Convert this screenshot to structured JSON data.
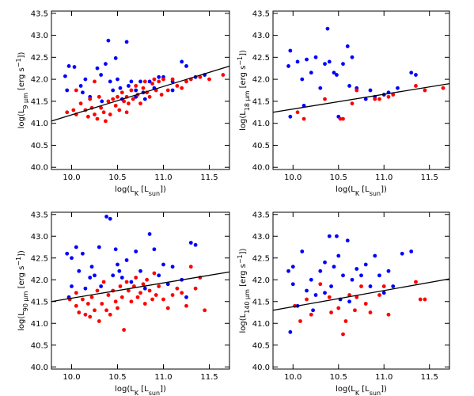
{
  "chart_data": [
    {
      "type": "scatter",
      "x_label": [
        {
          "text": "log(L"
        },
        {
          "text": "K",
          "shift": "sub"
        },
        {
          "text": " [L"
        },
        {
          "text": "sun",
          "shift": "sub"
        },
        {
          "text": "])"
        }
      ],
      "y_label": [
        {
          "text": "log(L"
        },
        {
          "text": "9 µm",
          "shift": "sub"
        },
        {
          "text": " [erg s"
        },
        {
          "text": "−1",
          "shift": "super"
        },
        {
          "text": "])"
        }
      ],
      "xlim": [
        9.78,
        11.72
      ],
      "ylim": [
        39.95,
        43.55
      ],
      "xticks": [
        {
          "value": 10,
          "label": "10.0"
        },
        10.5,
        {
          "value": 11,
          "label": "11.0"
        },
        11.5
      ],
      "yticks": [
        {
          "value": 40,
          "label": "40.0"
        },
        40.5,
        {
          "value": 41,
          "label": "41.0"
        },
        41.5,
        {
          "value": 42,
          "label": "42.0"
        },
        42.5,
        {
          "value": 43,
          "label": "43.0"
        },
        43.5
      ],
      "series": [
        {
          "color": "#0000ff",
          "x": [
            9.93,
            9.97,
            10.03,
            9.95,
            10.1,
            10.12,
            10.15,
            10.2,
            10.28,
            10.32,
            10.33,
            10.37,
            10.4,
            10.42,
            10.45,
            10.48,
            10.5,
            10.53,
            10.55,
            10.6,
            10.62,
            10.65,
            10.7,
            10.75,
            10.78,
            10.8,
            10.85,
            10.9,
            10.95,
            11.0,
            11.1,
            11.2,
            11.25,
            11.35,
            11.45,
            11.1,
            10.7
          ],
          "y": [
            42.07,
            42.3,
            42.28,
            41.75,
            41.85,
            41.7,
            42.0,
            41.6,
            42.25,
            42.1,
            41.5,
            42.35,
            42.88,
            41.95,
            41.75,
            42.48,
            42.0,
            41.8,
            41.55,
            42.85,
            41.85,
            41.95,
            41.6,
            41.95,
            41.7,
            41.55,
            41.95,
            41.8,
            42.05,
            42.05,
            41.95,
            42.4,
            42.3,
            42.05,
            42.1,
            41.75,
            41.75
          ]
        },
        {
          "color": "#ff0000",
          "x": [
            9.95,
            10.02,
            10.05,
            10.1,
            10.15,
            10.18,
            10.2,
            10.22,
            10.25,
            10.28,
            10.3,
            10.32,
            10.35,
            10.37,
            10.4,
            10.42,
            10.45,
            10.48,
            10.5,
            10.52,
            10.55,
            10.57,
            10.6,
            10.62,
            10.65,
            10.67,
            10.7,
            10.72,
            10.75,
            10.78,
            10.8,
            10.82,
            10.85,
            10.88,
            10.9,
            10.92,
            10.95,
            10.98,
            11.0,
            11.05,
            11.1,
            11.15,
            11.2,
            11.25,
            11.3,
            11.4,
            11.5,
            11.65,
            10.25,
            10.05,
            10.6
          ],
          "y": [
            41.25,
            41.3,
            41.2,
            41.45,
            41.3,
            41.15,
            41.55,
            41.35,
            41.2,
            41.1,
            41.6,
            41.35,
            41.25,
            41.05,
            41.5,
            41.2,
            41.55,
            41.4,
            41.6,
            41.3,
            41.7,
            41.5,
            41.6,
            41.45,
            41.75,
            41.55,
            41.85,
            41.65,
            41.45,
            41.8,
            41.95,
            41.7,
            41.6,
            41.9,
            42.0,
            41.75,
            41.95,
            41.65,
            42.0,
            41.75,
            42.0,
            41.85,
            41.8,
            41.95,
            42.0,
            42.05,
            42.0,
            42.1,
            41.95,
            41.75,
            41.25
          ]
        }
      ],
      "fit": {
        "color": "#000000",
        "x": [
          9.78,
          11.72
        ],
        "y": [
          41.05,
          42.3
        ]
      }
    },
    {
      "type": "scatter",
      "x_label": [
        {
          "text": "log(L"
        },
        {
          "text": "K",
          "shift": "sub"
        },
        {
          "text": " [L"
        },
        {
          "text": "sun",
          "shift": "sub"
        },
        {
          "text": "])"
        }
      ],
      "y_label": [
        {
          "text": "log(L"
        },
        {
          "text": "18 µm",
          "shift": "sub"
        },
        {
          "text": " [erg s"
        },
        {
          "text": "−1",
          "shift": "super"
        },
        {
          "text": "])"
        }
      ],
      "xlim": [
        9.78,
        11.72
      ],
      "ylim": [
        39.95,
        43.55
      ],
      "xticks": [
        {
          "value": 10,
          "label": "10.0"
        },
        10.5,
        {
          "value": 11,
          "label": "11.0"
        },
        11.5
      ],
      "yticks": [
        {
          "value": 40,
          "label": "40.0"
        },
        40.5,
        {
          "value": 41,
          "label": "41.0"
        },
        41.5,
        {
          "value": 42,
          "label": "42.0"
        },
        42.5,
        {
          "value": 43,
          "label": "43.0"
        },
        43.5
      ],
      "series": [
        {
          "color": "#0000ff",
          "x": [
            9.95,
            9.97,
            9.97,
            10.05,
            10.1,
            10.12,
            10.15,
            10.2,
            10.25,
            10.3,
            10.35,
            10.38,
            10.4,
            10.45,
            10.48,
            10.5,
            10.55,
            10.6,
            10.62,
            10.65,
            10.7,
            10.8,
            10.85,
            10.9,
            11.0,
            11.05,
            11.15,
            11.3,
            11.35
          ],
          "y": [
            42.3,
            42.65,
            41.15,
            42.4,
            42.0,
            41.4,
            42.45,
            42.15,
            42.5,
            41.8,
            42.35,
            43.15,
            42.4,
            42.15,
            42.1,
            41.15,
            42.35,
            42.75,
            41.85,
            42.5,
            41.8,
            41.55,
            41.75,
            41.6,
            41.65,
            41.7,
            41.8,
            42.15,
            42.1
          ]
        },
        {
          "color": "#ff0000",
          "x": [
            10.05,
            10.12,
            10.35,
            10.52,
            10.55,
            10.65,
            10.7,
            10.9,
            10.95,
            11.05,
            11.1,
            11.35,
            11.45,
            11.65
          ],
          "y": [
            41.25,
            41.1,
            41.55,
            41.1,
            41.1,
            41.45,
            41.75,
            41.55,
            41.55,
            41.6,
            41.65,
            41.85,
            41.75,
            41.8
          ]
        }
      ],
      "fit": {
        "color": "#000000",
        "x": [
          9.78,
          11.72
        ],
        "y": [
          41.25,
          41.9
        ]
      }
    },
    {
      "type": "scatter",
      "x_label": [
        {
          "text": "log(L"
        },
        {
          "text": "K",
          "shift": "sub"
        },
        {
          "text": " [L"
        },
        {
          "text": "sun",
          "shift": "sub"
        },
        {
          "text": "])"
        }
      ],
      "y_label": [
        {
          "text": "log(L"
        },
        {
          "text": "90 µm",
          "shift": "sub"
        },
        {
          "text": " [erg s"
        },
        {
          "text": "−1",
          "shift": "super"
        },
        {
          "text": "])"
        }
      ],
      "xlim": [
        9.78,
        11.72
      ],
      "ylim": [
        39.95,
        43.55
      ],
      "xticks": [
        {
          "value": 10,
          "label": "10.0"
        },
        10.5,
        {
          "value": 11,
          "label": "11.0"
        },
        11.5
      ],
      "yticks": [
        {
          "value": 40,
          "label": "40.0"
        },
        40.5,
        {
          "value": 41,
          "label": "41.0"
        },
        41.5,
        {
          "value": 42,
          "label": "42.0"
        },
        42.5,
        {
          "value": 43,
          "label": "43.0"
        },
        43.5
      ],
      "series": [
        {
          "color": "#0000ff",
          "x": [
            9.95,
            10.0,
            10.05,
            9.97,
            10.0,
            10.08,
            10.12,
            10.15,
            10.2,
            10.22,
            10.25,
            10.3,
            10.32,
            10.38,
            10.42,
            10.45,
            10.48,
            10.5,
            10.52,
            10.55,
            10.6,
            10.65,
            10.7,
            10.75,
            10.8,
            10.85,
            10.9,
            10.95,
            11.0,
            11.05,
            11.1,
            11.2,
            11.3,
            11.35,
            11.25
          ],
          "y": [
            42.6,
            42.5,
            42.75,
            41.6,
            41.85,
            42.2,
            42.6,
            41.8,
            42.05,
            42.3,
            42.1,
            42.75,
            41.85,
            43.45,
            43.4,
            42.1,
            42.7,
            42.35,
            42.2,
            42.05,
            42.45,
            41.95,
            42.65,
            42.2,
            41.8,
            43.05,
            42.7,
            42.1,
            42.35,
            41.9,
            42.3,
            42.0,
            42.85,
            42.8,
            41.6
          ]
        },
        {
          "color": "#ff0000",
          "x": [
            9.98,
            10.05,
            10.05,
            10.08,
            10.12,
            10.15,
            10.18,
            10.2,
            10.22,
            10.25,
            10.28,
            10.3,
            10.33,
            10.35,
            10.38,
            10.4,
            10.42,
            10.45,
            10.48,
            10.5,
            10.53,
            10.55,
            10.57,
            10.6,
            10.62,
            10.65,
            10.68,
            10.7,
            10.72,
            10.75,
            10.78,
            10.8,
            10.82,
            10.85,
            10.88,
            10.9,
            10.92,
            10.95,
            11.0,
            11.05,
            11.1,
            11.15,
            11.2,
            11.3,
            11.35,
            11.4,
            11.45,
            11.25
          ],
          "y": [
            41.55,
            41.7,
            41.4,
            41.25,
            41.55,
            41.2,
            41.45,
            41.15,
            41.6,
            41.3,
            41.75,
            41.05,
            41.45,
            41.95,
            41.3,
            41.65,
            41.2,
            41.75,
            41.5,
            41.35,
            41.85,
            41.6,
            40.85,
            41.95,
            41.75,
            41.5,
            41.85,
            42.05,
            41.6,
            41.7,
            41.9,
            41.45,
            42.0,
            41.75,
            41.55,
            42.15,
            41.65,
            41.85,
            41.55,
            41.35,
            41.65,
            41.8,
            41.7,
            42.3,
            41.8,
            42.05,
            41.3,
            41.4
          ]
        }
      ],
      "fit": {
        "color": "#000000",
        "x": [
          9.78,
          11.72
        ],
        "y": [
          41.5,
          42.18
        ]
      }
    },
    {
      "type": "scatter",
      "x_label": [
        {
          "text": "log(L"
        },
        {
          "text": "K",
          "shift": "sub"
        },
        {
          "text": " [L"
        },
        {
          "text": "sun",
          "shift": "sub"
        },
        {
          "text": "])"
        }
      ],
      "y_label": [
        {
          "text": "log(L"
        },
        {
          "text": "140 µm",
          "shift": "sub"
        },
        {
          "text": " [erg s"
        },
        {
          "text": "−1",
          "shift": "super"
        },
        {
          "text": "])"
        }
      ],
      "xlim": [
        9.78,
        11.72
      ],
      "ylim": [
        39.95,
        43.55
      ],
      "xticks": [
        {
          "value": 10,
          "label": "10.0"
        },
        10.5,
        {
          "value": 11,
          "label": "11.0"
        },
        11.5
      ],
      "yticks": [
        {
          "value": 40,
          "label": "40.0"
        },
        40.5,
        {
          "value": 41,
          "label": "41.0"
        },
        41.5,
        {
          "value": 42,
          "label": "42.0"
        },
        42.5,
        {
          "value": 43,
          "label": "43.0"
        },
        43.5
      ],
      "series": [
        {
          "color": "#0000ff",
          "x": [
            9.95,
            9.97,
            10.0,
            10.0,
            10.05,
            10.1,
            10.15,
            10.2,
            10.22,
            10.25,
            10.3,
            10.35,
            10.4,
            10.42,
            10.45,
            10.48,
            10.5,
            10.52,
            10.55,
            10.6,
            10.62,
            10.65,
            10.7,
            10.75,
            10.8,
            10.85,
            10.9,
            10.95,
            11.0,
            11.05,
            11.1,
            11.2,
            11.3,
            10.35
          ],
          "y": [
            42.2,
            40.8,
            42.3,
            41.9,
            41.4,
            42.65,
            41.75,
            42.0,
            41.3,
            41.65,
            42.2,
            42.4,
            43.0,
            41.85,
            42.3,
            43.0,
            42.55,
            41.55,
            42.1,
            42.9,
            41.5,
            42.0,
            42.25,
            42.1,
            42.35,
            41.85,
            42.55,
            42.1,
            41.7,
            42.2,
            41.85,
            42.6,
            42.65,
            41.7
          ]
        },
        {
          "color": "#ff0000",
          "x": [
            10.02,
            10.08,
            10.15,
            10.2,
            10.3,
            10.4,
            10.42,
            10.5,
            10.55,
            10.58,
            10.62,
            10.7,
            10.75,
            10.8,
            10.85,
            10.95,
            11.0,
            11.05,
            11.35,
            11.4,
            11.45,
            10.68
          ],
          "y": [
            41.4,
            41.05,
            41.55,
            41.2,
            41.9,
            41.6,
            41.25,
            41.35,
            40.75,
            41.05,
            41.65,
            41.6,
            41.85,
            41.45,
            41.25,
            41.65,
            41.85,
            41.2,
            41.95,
            41.55,
            41.55,
            41.3
          ]
        }
      ],
      "fit": {
        "color": "#000000",
        "x": [
          9.78,
          11.72
        ],
        "y": [
          41.3,
          42.02
        ]
      }
    }
  ]
}
